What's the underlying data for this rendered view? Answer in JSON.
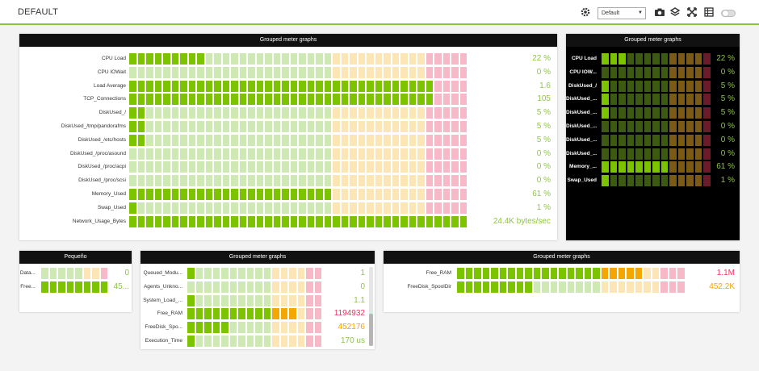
{
  "app": {
    "title": "DEFAULT",
    "selector_value": "Default",
    "icons": [
      "gear-icon",
      "camera-icon",
      "stack-icon",
      "fullscreen-icon",
      "table-icon",
      "toggle-switch"
    ]
  },
  "colors": {
    "green_full": "#7cc400",
    "green_empty": "#cfe9b5",
    "yellow_full": "#f4a700",
    "yellow_empty": "#fde6b5",
    "red_full": "#e8365f",
    "red_empty": "#f7b8c8",
    "dark_green_full": "#7cc400",
    "dark_green_empty": "#3d5a12",
    "dark_yellow_empty": "#7a5a14",
    "dark_red_empty": "#6b1b2a",
    "value_green": "#8cc63f",
    "value_yellow": "#f4a700",
    "value_red": "#e8365f"
  },
  "widgets": [
    {
      "id": "main",
      "title": "Grouped meter graphs",
      "theme": "light",
      "rows": [
        {
          "label": "CPU Load",
          "value": "22 %",
          "fill": 0.22,
          "status": "green"
        },
        {
          "label": "CPU IOWait",
          "value": "0 %",
          "fill": 0,
          "status": "green"
        },
        {
          "label": "Load Average",
          "value": "1.6",
          "fill": 0.9,
          "status": "green"
        },
        {
          "label": "TCP_Connections",
          "value": "105",
          "fill": 0.9,
          "status": "green"
        },
        {
          "label": "DiskUsed_/",
          "value": "5 %",
          "fill": 0.05,
          "status": "green"
        },
        {
          "label": "DiskUsed_/tmp/pandorafms",
          "value": "5 %",
          "fill": 0.05,
          "status": "green"
        },
        {
          "label": "DiskUsed_/etc/hosts",
          "value": "5 %",
          "fill": 0.05,
          "status": "green"
        },
        {
          "label": "DiskUsed_/proc/asound",
          "value": "0 %",
          "fill": 0,
          "status": "green"
        },
        {
          "label": "DiskUsed_/proc/acpi",
          "value": "0 %",
          "fill": 0,
          "status": "green"
        },
        {
          "label": "DiskUsed_/proc/scsi",
          "value": "0 %",
          "fill": 0,
          "status": "green"
        },
        {
          "label": "Memory_Used",
          "value": "61 %",
          "fill": 0.61,
          "status": "green"
        },
        {
          "label": "Swap_Used",
          "value": "1 %",
          "fill": 0.01,
          "status": "green"
        },
        {
          "label": "Network_Usage_Bytes",
          "value": "24.4K bytes/sec",
          "fill": 1.0,
          "status": "green"
        }
      ]
    },
    {
      "id": "dark",
      "title": "Grouped meter graphs",
      "theme": "dark",
      "rows": [
        {
          "label": "CPU Load",
          "value": "22 %",
          "fill": 0.22,
          "status": "green"
        },
        {
          "label": "CPU IOW...",
          "value": "0 %",
          "fill": 0,
          "status": "green"
        },
        {
          "label": "DiskUsed_/",
          "value": "5 %",
          "fill": 0.05,
          "status": "green"
        },
        {
          "label": "DiskUsed_...",
          "value": "5 %",
          "fill": 0.05,
          "status": "green"
        },
        {
          "label": "DiskUsed_...",
          "value": "5 %",
          "fill": 0.05,
          "status": "green"
        },
        {
          "label": "DiskUsed_...",
          "value": "0 %",
          "fill": 0,
          "status": "green"
        },
        {
          "label": "DiskUsed_...",
          "value": "0 %",
          "fill": 0,
          "status": "green"
        },
        {
          "label": "DiskUsed_...",
          "value": "0 %",
          "fill": 0,
          "status": "green"
        },
        {
          "label": "Memory_...",
          "value": "61 %",
          "fill": 0.61,
          "status": "green"
        },
        {
          "label": "Swap_Used",
          "value": "1 %",
          "fill": 0.01,
          "status": "green"
        }
      ]
    },
    {
      "id": "small",
      "title": "Pequeño",
      "theme": "light",
      "rows": [
        {
          "label": "Data...",
          "value": "0",
          "fill": 0,
          "status": "green"
        },
        {
          "label": "Free...",
          "value": "45...",
          "fill": 1.0,
          "status": "green"
        }
      ]
    },
    {
      "id": "middle",
      "title": "Grouped meter graphs",
      "theme": "light",
      "rows": [
        {
          "label": "Queued_Modu...",
          "value": "1",
          "fill": 0.05,
          "status": "green"
        },
        {
          "label": "Agents_Unkno...",
          "value": "0",
          "fill": 0,
          "status": "green"
        },
        {
          "label": "System_Load_...",
          "value": "1.1",
          "fill": 0.05,
          "status": "green"
        },
        {
          "label": "Free_RAM",
          "value": "1194932",
          "fill": 0.82,
          "status": "red"
        },
        {
          "label": "FreeDisk_Spo...",
          "value": "452176",
          "fill": 0.32,
          "status": "yellow"
        },
        {
          "label": "Execution_Time",
          "value": "170 us",
          "fill": 0.05,
          "status": "green"
        }
      ]
    },
    {
      "id": "right",
      "title": "Grouped meter graphs",
      "theme": "light",
      "rows": [
        {
          "label": "Free_RAM",
          "value": "1.1M",
          "fill": 0.82,
          "status": "red"
        },
        {
          "label": "FreeDisk_SpoolDir",
          "value": "452.2K",
          "fill": 0.32,
          "status": "yellow"
        }
      ]
    }
  ]
}
